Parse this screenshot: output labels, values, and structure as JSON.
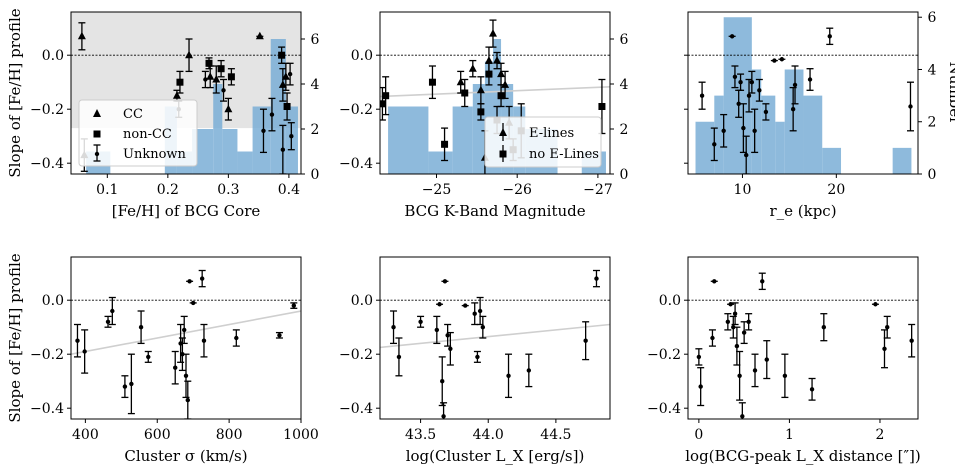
{
  "chart_data": [
    {
      "type": "scatter",
      "xlabel": "[Fe/H] of BCG Core",
      "ylabel": "Slope of [Fe/H] profile",
      "xlim": [
        0.04,
        0.42
      ],
      "ylim": [
        -0.44,
        0.16
      ],
      "xticks": [
        0.1,
        0.2,
        0.3,
        0.4
      ],
      "xtick_labels": [
        "0.1",
        "0.2",
        "0.3",
        "0.4"
      ],
      "yticks": [
        -0.4,
        -0.2,
        0.0
      ],
      "ytick_labels": [
        "−0.4",
        "−0.2",
        "0.0"
      ],
      "shaded_band": [
        -0.27,
        0.16
      ],
      "hist": {
        "edges": [
          0.04,
          0.065,
          0.105,
          0.155,
          0.195,
          0.215,
          0.24,
          0.275,
          0.29,
          0.315,
          0.34,
          0.37,
          0.395,
          0.415
        ],
        "counts": [
          0,
          1,
          0,
          0,
          3,
          1,
          2,
          4,
          2,
          1,
          3,
          6,
          3
        ],
        "ylim": [
          0,
          7.2
        ],
        "ticks": [
          0,
          2,
          4,
          6
        ],
        "tick_labels": [
          "0",
          "2",
          "4",
          "6"
        ]
      },
      "legend": {
        "position": "lower-left",
        "entries": [
          "CC",
          "non-CC",
          "Unknown"
        ]
      },
      "points": [
        {
          "x": 0.058,
          "y": 0.07,
          "err": 0.05,
          "m": "tri"
        },
        {
          "x": 0.352,
          "y": 0.07,
          "err": 0.0,
          "m": "tri"
        },
        {
          "x": 0.235,
          "y": 0.0,
          "err": 0.06,
          "m": "tri"
        },
        {
          "x": 0.27,
          "y": -0.08,
          "err": 0.04,
          "m": "tri"
        },
        {
          "x": 0.28,
          "y": -0.09,
          "err": 0.05,
          "m": "tri"
        },
        {
          "x": 0.3,
          "y": -0.2,
          "err": 0.04,
          "m": "tri"
        },
        {
          "x": 0.39,
          "y": -0.11,
          "err": 0.06,
          "m": "tri"
        },
        {
          "x": 0.395,
          "y": -0.08,
          "err": 0.05,
          "m": "tri"
        },
        {
          "x": 0.062,
          "y": -0.37,
          "err": 0.06,
          "m": "tri"
        },
        {
          "x": 0.215,
          "y": -0.15,
          "err": 0.02,
          "m": "tri"
        },
        {
          "x": 0.22,
          "y": -0.1,
          "err": 0.04,
          "m": "sq"
        },
        {
          "x": 0.268,
          "y": -0.03,
          "err": 0.02,
          "m": "sq"
        },
        {
          "x": 0.288,
          "y": -0.05,
          "err": 0.03,
          "m": "sq"
        },
        {
          "x": 0.305,
          "y": -0.08,
          "err": 0.03,
          "m": "sq"
        },
        {
          "x": 0.388,
          "y": 0.0,
          "err": 0.03,
          "m": "sq"
        },
        {
          "x": 0.397,
          "y": -0.19,
          "err": 0.05,
          "m": "sq"
        },
        {
          "x": 0.218,
          "y": -0.2,
          "err": 0.03,
          "m": "dot"
        },
        {
          "x": 0.262,
          "y": -0.09,
          "err": 0.03,
          "m": "dot"
        },
        {
          "x": 0.292,
          "y": -0.13,
          "err": 0.04,
          "m": "dot"
        },
        {
          "x": 0.358,
          "y": -0.28,
          "err": 0.08,
          "m": "dot"
        },
        {
          "x": 0.372,
          "y": -0.22,
          "err": 0.06,
          "m": "dot"
        },
        {
          "x": 0.39,
          "y": -0.35,
          "err": 0.09,
          "m": "dot"
        },
        {
          "x": 0.402,
          "y": -0.07,
          "err": 0.04,
          "m": "dot"
        },
        {
          "x": 0.404,
          "y": -0.3,
          "err": 0.05,
          "m": "dot"
        }
      ]
    },
    {
      "type": "scatter",
      "xlabel": "BCG K-Band Magnitude",
      "ylabel": "",
      "xlim": [
        -24.3,
        -27.15
      ],
      "ylim": [
        -0.44,
        0.16
      ],
      "xticks": [
        -25,
        -26,
        -27
      ],
      "xtick_labels": [
        "−25",
        "−26",
        "−27"
      ],
      "yticks": [
        -0.4,
        -0.2,
        0.0
      ],
      "ytick_labels": [
        "−0.4",
        "−0.2",
        "0.0"
      ],
      "fit_line": [
        [
          -24.3,
          -0.153
        ],
        [
          -27.15,
          -0.117
        ]
      ],
      "hist": {
        "edges": [
          -24.4,
          -24.9,
          -25.2,
          -25.45,
          -25.6,
          -25.7,
          -25.8,
          -25.95,
          -26.1,
          -26.5,
          -26.8,
          -27.1
        ],
        "counts": [
          3,
          1,
          3,
          4,
          5,
          6,
          4,
          3,
          2,
          0,
          1
        ],
        "ylim": [
          0,
          7.2
        ],
        "ticks": [
          0,
          2,
          4,
          6
        ],
        "tick_labels": [
          "0",
          "2",
          "4",
          "6"
        ]
      },
      "legend": {
        "position": "lower-right",
        "entries": [
          "E-lines",
          "no E-Lines"
        ]
      },
      "points": [
        {
          "x": -24.33,
          "y": -0.18,
          "err": 0.06,
          "m": "sq"
        },
        {
          "x": -24.37,
          "y": -0.15,
          "err": 0.07,
          "m": "sq"
        },
        {
          "x": -24.95,
          "y": -0.1,
          "err": 0.06,
          "m": "sq"
        },
        {
          "x": -25.1,
          "y": -0.33,
          "err": 0.06,
          "m": "sq"
        },
        {
          "x": -25.35,
          "y": -0.14,
          "err": 0.05,
          "m": "sq"
        },
        {
          "x": -25.55,
          "y": -0.21,
          "err": 0.03,
          "m": "sq"
        },
        {
          "x": -25.65,
          "y": -0.07,
          "err": 0.04,
          "m": "sq"
        },
        {
          "x": -25.75,
          "y": -0.24,
          "err": 0.05,
          "m": "sq"
        },
        {
          "x": -25.8,
          "y": -0.15,
          "err": 0.04,
          "m": "sq"
        },
        {
          "x": -25.95,
          "y": -0.35,
          "err": 0.04,
          "m": "sq"
        },
        {
          "x": -26.05,
          "y": -0.28,
          "err": 0.1,
          "m": "sq"
        },
        {
          "x": -27.05,
          "y": -0.19,
          "err": 0.1,
          "m": "sq"
        },
        {
          "x": -25.3,
          "y": -0.1,
          "err": 0.04,
          "m": "tri"
        },
        {
          "x": -25.45,
          "y": -0.05,
          "err": 0.03,
          "m": "tri"
        },
        {
          "x": -25.55,
          "y": -0.13,
          "err": 0.05,
          "m": "tri"
        },
        {
          "x": -25.65,
          "y": -0.02,
          "err": 0.05,
          "m": "tri"
        },
        {
          "x": -25.7,
          "y": 0.08,
          "err": 0.05,
          "m": "tri"
        },
        {
          "x": -25.75,
          "y": -0.02,
          "err": 0.03,
          "m": "tri"
        },
        {
          "x": -25.8,
          "y": -0.07,
          "err": 0.04,
          "m": "tri"
        },
        {
          "x": -25.85,
          "y": -0.11,
          "err": 0.05,
          "m": "tri"
        },
        {
          "x": -25.9,
          "y": -0.25,
          "err": 0.06,
          "m": "tri"
        },
        {
          "x": -25.6,
          "y": -0.38,
          "err": 0.1,
          "m": "tri"
        }
      ]
    },
    {
      "type": "scatter",
      "xlabel": "r_e (kpc)",
      "ylabel": "Number",
      "xlim": [
        4.2,
        28.7
      ],
      "ylim": [
        -0.44,
        0.16
      ],
      "xticks": [
        10,
        20
      ],
      "xtick_labels": [
        "10",
        "20"
      ],
      "yticks": [
        -0.4,
        -0.2,
        0.0
      ],
      "ytick_labels": [
        "",
        "",
        ""
      ],
      "hist": {
        "edges": [
          5,
          7,
          8,
          11,
          12,
          13.5,
          14.5,
          16.5,
          18.5,
          20.5,
          26,
          28
        ],
        "counts": [
          2,
          3,
          6,
          4,
          3,
          2,
          4,
          3,
          1,
          0,
          1
        ],
        "ylim": [
          0,
          6.2
        ],
        "ticks": [
          0,
          2,
          4,
          6
        ],
        "tick_labels": [
          "0",
          "2",
          "4",
          "6"
        ]
      },
      "points": [
        {
          "x": 5.7,
          "y": -0.15,
          "err": 0.05,
          "m": "dot"
        },
        {
          "x": 7.0,
          "y": -0.33,
          "err": 0.06,
          "m": "dot"
        },
        {
          "x": 8.0,
          "y": -0.28,
          "err": 0.06,
          "m": "dot"
        },
        {
          "x": 8.9,
          "y": 0.07,
          "err": 0.0,
          "m": "dot"
        },
        {
          "x": 9.2,
          "y": -0.08,
          "err": 0.04,
          "m": "dot"
        },
        {
          "x": 9.6,
          "y": -0.18,
          "err": 0.05,
          "m": "dot"
        },
        {
          "x": 9.8,
          "y": -0.1,
          "err": 0.03,
          "m": "dot"
        },
        {
          "x": 10.1,
          "y": -0.27,
          "err": 0.09,
          "m": "dot"
        },
        {
          "x": 10.4,
          "y": -0.37,
          "err": 0.07,
          "m": "dot"
        },
        {
          "x": 10.7,
          "y": -0.15,
          "err": 0.06,
          "m": "dot"
        },
        {
          "x": 11.0,
          "y": -0.1,
          "err": 0.04,
          "m": "dot"
        },
        {
          "x": 11.3,
          "y": -0.28,
          "err": 0.08,
          "m": "dot"
        },
        {
          "x": 11.8,
          "y": -0.13,
          "err": 0.04,
          "m": "dot"
        },
        {
          "x": 12.5,
          "y": -0.21,
          "err": 0.03,
          "m": "dot"
        },
        {
          "x": 13.4,
          "y": -0.02,
          "err": 0.0,
          "m": "dot"
        },
        {
          "x": 14.2,
          "y": -0.015,
          "err": 0.0,
          "m": "dot"
        },
        {
          "x": 15.4,
          "y": -0.2,
          "err": 0.08,
          "m": "dot"
        },
        {
          "x": 15.6,
          "y": -0.11,
          "err": 0.07,
          "m": "dot"
        },
        {
          "x": 17.2,
          "y": -0.09,
          "err": 0.04,
          "m": "dot"
        },
        {
          "x": 19.3,
          "y": 0.07,
          "err": 0.03,
          "m": "dot"
        },
        {
          "x": 27.9,
          "y": -0.19,
          "err": 0.09,
          "m": "dot"
        }
      ]
    },
    {
      "type": "scatter",
      "xlabel": "Cluster σ (km/s)",
      "ylabel": "Slope of [Fe/H] profile",
      "xlim": [
        360,
        1000
      ],
      "ylim": [
        -0.44,
        0.16
      ],
      "xticks": [
        400,
        600,
        800,
        1000
      ],
      "xtick_labels": [
        "400",
        "600",
        "800",
        "1000"
      ],
      "yticks": [
        -0.4,
        -0.2,
        0.0
      ],
      "ytick_labels": [
        "−0.4",
        "−0.2",
        "0.0"
      ],
      "fit_line": [
        [
          360,
          -0.2
        ],
        [
          1000,
          -0.04
        ]
      ],
      "points": [
        {
          "x": 378,
          "y": -0.15,
          "err": 0.06,
          "m": "dot"
        },
        {
          "x": 398,
          "y": -0.19,
          "err": 0.08,
          "m": "dot"
        },
        {
          "x": 463,
          "y": -0.08,
          "err": 0.02,
          "m": "dot"
        },
        {
          "x": 475,
          "y": -0.04,
          "err": 0.05,
          "m": "dot"
        },
        {
          "x": 510,
          "y": -0.32,
          "err": 0.04,
          "m": "dot"
        },
        {
          "x": 528,
          "y": -0.31,
          "err": 0.11,
          "m": "dot"
        },
        {
          "x": 555,
          "y": -0.1,
          "err": 0.06,
          "m": "dot"
        },
        {
          "x": 575,
          "y": -0.21,
          "err": 0.02,
          "m": "dot"
        },
        {
          "x": 650,
          "y": -0.25,
          "err": 0.06,
          "m": "dot"
        },
        {
          "x": 665,
          "y": -0.16,
          "err": 0.07,
          "m": "dot"
        },
        {
          "x": 670,
          "y": -0.2,
          "err": 0.06,
          "m": "dot"
        },
        {
          "x": 675,
          "y": -0.11,
          "err": 0.05,
          "m": "dot"
        },
        {
          "x": 680,
          "y": -0.28,
          "err": 0.08,
          "m": "dot"
        },
        {
          "x": 685,
          "y": -0.37,
          "err": 0.07,
          "m": "dot"
        },
        {
          "x": 690,
          "y": 0.07,
          "err": 0.0,
          "m": "dot"
        },
        {
          "x": 700,
          "y": -0.01,
          "err": 0.0,
          "m": "dot"
        },
        {
          "x": 725,
          "y": 0.08,
          "err": 0.03,
          "m": "dot"
        },
        {
          "x": 730,
          "y": -0.15,
          "err": 0.06,
          "m": "dot"
        },
        {
          "x": 820,
          "y": -0.14,
          "err": 0.03,
          "m": "dot"
        },
        {
          "x": 940,
          "y": -0.13,
          "err": 0.01,
          "m": "dot"
        },
        {
          "x": 980,
          "y": -0.02,
          "err": 0.01,
          "m": "dot"
        }
      ]
    },
    {
      "type": "scatter",
      "xlabel": "log(Cluster L_X [erg/s])",
      "ylabel": "",
      "xlim": [
        43.2,
        44.9
      ],
      "ylim": [
        -0.44,
        0.16
      ],
      "xticks": [
        43.5,
        44.0,
        44.5
      ],
      "xtick_labels": [
        "43.5",
        "44.0",
        "44.5"
      ],
      "yticks": [
        -0.4,
        -0.2,
        0.0
      ],
      "ytick_labels": [
        "−0.4",
        "−0.2",
        "0.0"
      ],
      "fit_line": [
        [
          43.2,
          -0.175
        ],
        [
          44.9,
          -0.09
        ]
      ],
      "points": [
        {
          "x": 43.3,
          "y": -0.1,
          "err": 0.06,
          "m": "dot"
        },
        {
          "x": 43.34,
          "y": -0.21,
          "err": 0.07,
          "m": "dot"
        },
        {
          "x": 43.5,
          "y": -0.08,
          "err": 0.02,
          "m": "dot"
        },
        {
          "x": 43.62,
          "y": -0.11,
          "err": 0.05,
          "m": "dot"
        },
        {
          "x": 43.64,
          "y": -0.015,
          "err": 0.0,
          "m": "dot"
        },
        {
          "x": 43.66,
          "y": -0.3,
          "err": 0.09,
          "m": "dot"
        },
        {
          "x": 43.67,
          "y": -0.43,
          "err": 0.05,
          "m": "dot"
        },
        {
          "x": 43.68,
          "y": 0.07,
          "err": 0.0,
          "m": "dot"
        },
        {
          "x": 43.7,
          "y": -0.13,
          "err": 0.04,
          "m": "dot"
        },
        {
          "x": 43.72,
          "y": -0.18,
          "err": 0.06,
          "m": "dot"
        },
        {
          "x": 43.83,
          "y": -0.02,
          "err": 0.0,
          "m": "dot"
        },
        {
          "x": 43.9,
          "y": -0.05,
          "err": 0.04,
          "m": "dot"
        },
        {
          "x": 43.92,
          "y": -0.21,
          "err": 0.02,
          "m": "dot"
        },
        {
          "x": 43.94,
          "y": -0.04,
          "err": 0.05,
          "m": "dot"
        },
        {
          "x": 43.96,
          "y": -0.1,
          "err": 0.04,
          "m": "dot"
        },
        {
          "x": 44.15,
          "y": -0.28,
          "err": 0.08,
          "m": "dot"
        },
        {
          "x": 44.3,
          "y": -0.26,
          "err": 0.06,
          "m": "dot"
        },
        {
          "x": 44.72,
          "y": -0.15,
          "err": 0.07,
          "m": "dot"
        },
        {
          "x": 44.8,
          "y": 0.08,
          "err": 0.03,
          "m": "dot"
        }
      ]
    },
    {
      "type": "scatter",
      "xlabel": "log(BCG-peak L_X distance [″])",
      "ylabel": "",
      "xlim": [
        -0.12,
        2.42
      ],
      "ylim": [
        -0.44,
        0.16
      ],
      "xticks": [
        0,
        1,
        2
      ],
      "xtick_labels": [
        "0",
        "1",
        "2"
      ],
      "yticks": [
        -0.4,
        -0.2,
        0.0
      ],
      "ytick_labels": [
        "−0.4",
        "−0.2",
        "0.0"
      ],
      "points": [
        {
          "x": 0.0,
          "y": -0.21,
          "err": 0.03,
          "m": "dot"
        },
        {
          "x": 0.02,
          "y": -0.32,
          "err": 0.07,
          "m": "dot"
        },
        {
          "x": 0.15,
          "y": -0.14,
          "err": 0.03,
          "m": "dot"
        },
        {
          "x": 0.17,
          "y": 0.07,
          "err": 0.0,
          "m": "dot"
        },
        {
          "x": 0.32,
          "y": -0.08,
          "err": 0.03,
          "m": "dot"
        },
        {
          "x": 0.35,
          "y": -0.015,
          "err": 0.0,
          "m": "dot"
        },
        {
          "x": 0.38,
          "y": -0.1,
          "err": 0.04,
          "m": "dot"
        },
        {
          "x": 0.4,
          "y": -0.05,
          "err": 0.04,
          "m": "dot"
        },
        {
          "x": 0.42,
          "y": -0.17,
          "err": 0.07,
          "m": "dot"
        },
        {
          "x": 0.45,
          "y": -0.28,
          "err": 0.09,
          "m": "dot"
        },
        {
          "x": 0.48,
          "y": -0.43,
          "err": 0.05,
          "m": "dot"
        },
        {
          "x": 0.5,
          "y": -0.12,
          "err": 0.04,
          "m": "dot"
        },
        {
          "x": 0.55,
          "y": -0.08,
          "err": 0.03,
          "m": "dot"
        },
        {
          "x": 0.62,
          "y": -0.26,
          "err": 0.06,
          "m": "dot"
        },
        {
          "x": 0.7,
          "y": 0.07,
          "err": 0.03,
          "m": "dot"
        },
        {
          "x": 0.75,
          "y": -0.22,
          "err": 0.07,
          "m": "dot"
        },
        {
          "x": 0.95,
          "y": -0.28,
          "err": 0.08,
          "m": "dot"
        },
        {
          "x": 1.25,
          "y": -0.33,
          "err": 0.04,
          "m": "dot"
        },
        {
          "x": 1.38,
          "y": -0.1,
          "err": 0.05,
          "m": "dot"
        },
        {
          "x": 1.95,
          "y": -0.015,
          "err": 0.0,
          "m": "dot"
        },
        {
          "x": 2.05,
          "y": -0.18,
          "err": 0.07,
          "m": "dot"
        },
        {
          "x": 2.08,
          "y": -0.1,
          "err": 0.04,
          "m": "dot"
        },
        {
          "x": 2.35,
          "y": -0.15,
          "err": 0.06,
          "m": "dot"
        }
      ]
    }
  ]
}
